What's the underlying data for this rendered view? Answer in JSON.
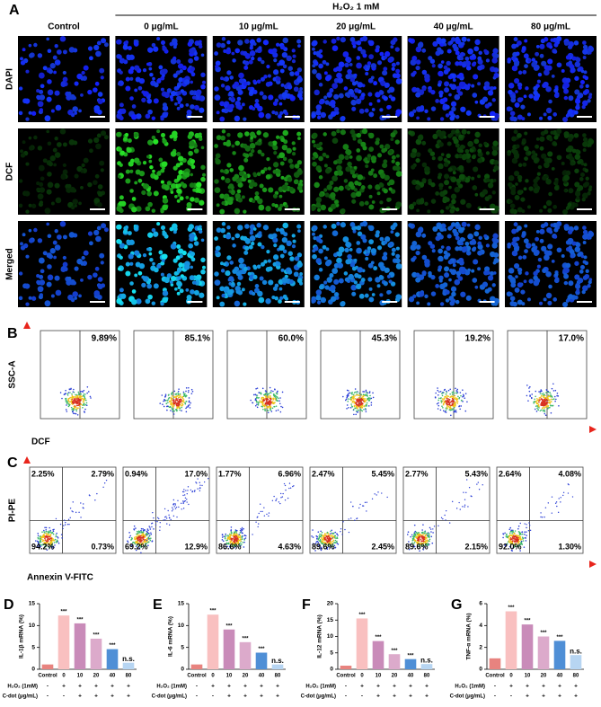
{
  "figure": {
    "panel_letters": [
      "A",
      "B",
      "C",
      "D",
      "E",
      "F",
      "G"
    ],
    "panel_a": {
      "group_header": "H₂O₂ 1 mM",
      "columns": [
        "Control",
        "0 μg/mL",
        "10 μg/mL",
        "20 μg/mL",
        "40 μg/mL",
        "80 μg/mL"
      ],
      "rows": [
        "DAPI",
        "DCF",
        "Merged"
      ]
    },
    "panel_b": {
      "y_label": "SSC-A",
      "x_label": "DCF",
      "percentages": [
        "9.89%",
        "85.1%",
        "60.0%",
        "45.3%",
        "19.2%",
        "17.0%"
      ]
    },
    "panel_c": {
      "y_label": "PI-PE",
      "x_label": "Annexin V-FITC",
      "quadrants": [
        [
          "2.25%",
          "2.79%",
          "94.2%",
          "0.73%"
        ],
        [
          "0.94%",
          "17.0%",
          "69.2%",
          "12.9%"
        ],
        [
          "1.77%",
          "6.96%",
          "86.6%",
          "4.63%"
        ],
        [
          "2.47%",
          "5.45%",
          "89.6%",
          "2.45%"
        ],
        [
          "2.77%",
          "5.43%",
          "89.6%",
          "2.15%"
        ],
        [
          "2.64%",
          "4.08%",
          "92.0%",
          "1.30%"
        ]
      ]
    }
  },
  "chart_data": [
    {
      "type": "bar",
      "y_label": "IL-1β mRNA (%)",
      "categories": [
        "Control",
        "0",
        "10",
        "20",
        "40",
        "80"
      ],
      "values": [
        1.1,
        12.3,
        10.5,
        7.0,
        4.6,
        1.5
      ],
      "annotations": [
        null,
        "***",
        "***",
        "***",
        "***",
        "n.s."
      ],
      "colors": [
        "#e8837f",
        "#f9c0c0",
        "#c98bb9",
        "#dcaacb",
        "#4f8fd6",
        "#b7d5f2"
      ],
      "ylim": [
        0,
        15
      ],
      "yticks": [
        0,
        5,
        10,
        15
      ],
      "treatment_rows": [
        {
          "name": "H₂O₂ (1mM)",
          "marks": [
            "-",
            "+",
            "+",
            "+",
            "+",
            "+"
          ]
        },
        {
          "name": "C-dot (μg/mL)",
          "marks": [
            "-",
            "-",
            "+",
            "+",
            "+",
            "+"
          ]
        }
      ]
    },
    {
      "type": "bar",
      "y_label": "IL-6 mRNA (%)",
      "categories": [
        "Control",
        "0",
        "10",
        "20",
        "40",
        "80"
      ],
      "values": [
        1.1,
        12.5,
        9.1,
        6.2,
        3.8,
        1.1
      ],
      "annotations": [
        null,
        "***",
        "***",
        "***",
        "***",
        "n.s."
      ],
      "colors": [
        "#e8837f",
        "#f9c0c0",
        "#c98bb9",
        "#dcaacb",
        "#4f8fd6",
        "#b7d5f2"
      ],
      "ylim": [
        0,
        15
      ],
      "yticks": [
        0,
        5,
        10,
        15
      ],
      "treatment_rows": [
        {
          "name": "H₂O₂ (1mM)",
          "marks": [
            "-",
            "+",
            "+",
            "+",
            "+",
            "+"
          ]
        },
        {
          "name": "C-dot (μg/mL)",
          "marks": [
            "-",
            "-",
            "+",
            "+",
            "+",
            "+"
          ]
        }
      ]
    },
    {
      "type": "bar",
      "y_label": "IL-12 mRNA (%)",
      "categories": [
        "Control",
        "0",
        "10",
        "20",
        "40",
        "80"
      ],
      "values": [
        1.1,
        15.5,
        8.6,
        4.6,
        3.1,
        1.6
      ],
      "annotations": [
        null,
        "***",
        "***",
        "***",
        "***",
        "n.s."
      ],
      "colors": [
        "#e8837f",
        "#f9c0c0",
        "#c98bb9",
        "#dcaacb",
        "#4f8fd6",
        "#b7d5f2"
      ],
      "ylim": [
        0,
        20
      ],
      "yticks": [
        0,
        5,
        10,
        15,
        20
      ],
      "treatment_rows": [
        {
          "name": "H₂O₂ (1mM)",
          "marks": [
            "-",
            "+",
            "+",
            "+",
            "+",
            "+"
          ]
        },
        {
          "name": "C-dot (μg/mL)",
          "marks": [
            "-",
            "-",
            "+",
            "+",
            "+",
            "+"
          ]
        }
      ]
    },
    {
      "type": "bar",
      "y_label": "TNF-α mRNA (%)",
      "categories": [
        "Control",
        "0",
        "10",
        "20",
        "40",
        "80"
      ],
      "values": [
        1.0,
        5.3,
        4.1,
        3.0,
        2.6,
        1.3
      ],
      "annotations": [
        null,
        "***",
        "***",
        "***",
        "***",
        "n.s."
      ],
      "colors": [
        "#e8837f",
        "#f9c0c0",
        "#c98bb9",
        "#dcaacb",
        "#4f8fd6",
        "#b7d5f2"
      ],
      "ylim": [
        0,
        6
      ],
      "yticks": [
        0,
        2,
        4,
        6
      ],
      "treatment_rows": [
        {
          "name": "H₂O₂ (1mM)",
          "marks": [
            "-",
            "+",
            "+",
            "+",
            "+",
            "+"
          ]
        },
        {
          "name": "C-dot (μg/mL)",
          "marks": [
            "-",
            "-",
            "+",
            "+",
            "+",
            "+"
          ]
        }
      ]
    }
  ]
}
